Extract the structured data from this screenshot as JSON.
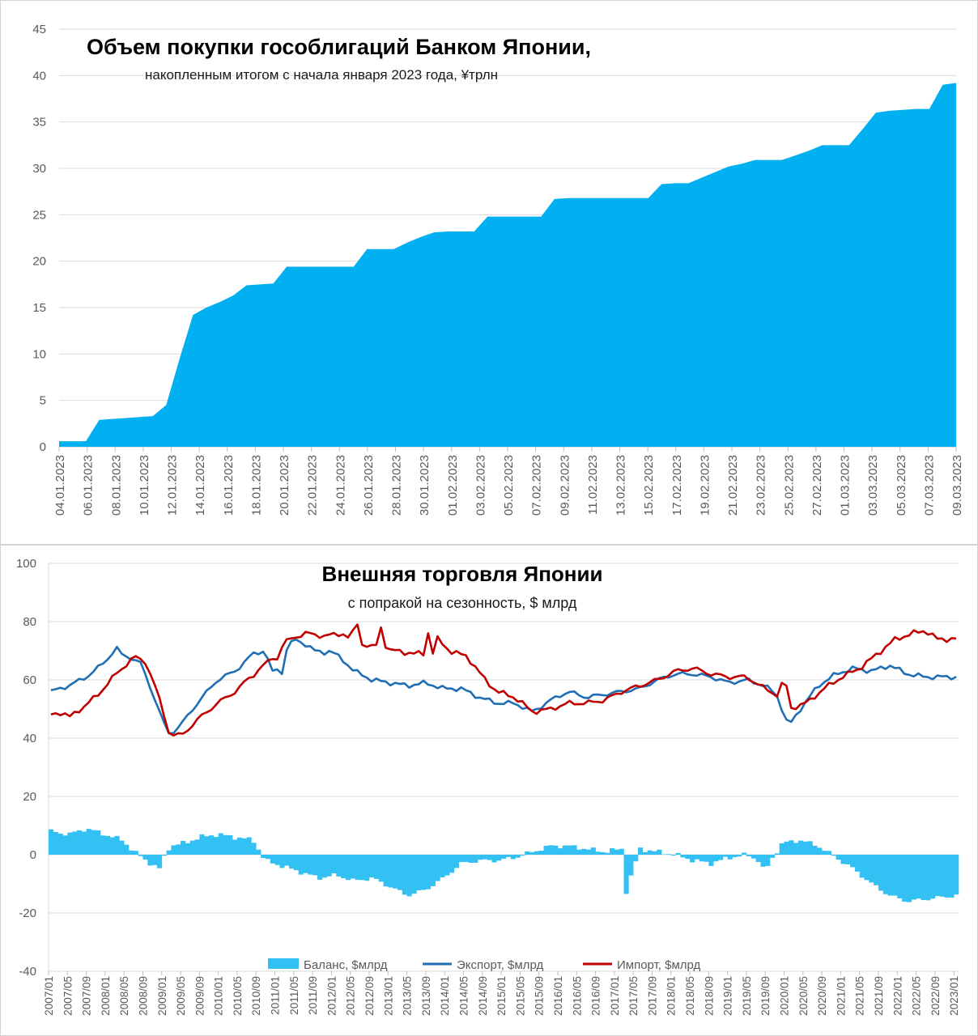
{
  "colors": {
    "area": "#00b0f0",
    "bar": "#33c0f3",
    "export": "#1f6fb5",
    "import": "#c00000",
    "grid": "#d9d9d9",
    "axis": "#bfbfbf",
    "text": "#595959"
  },
  "chart_data": [
    {
      "type": "area",
      "title": "Объем покупки гособлигаций Банком Японии,",
      "subtitle": "накопленным итогом с начала января 2023 года, ¥трлн",
      "xlabel": "",
      "ylabel": "",
      "ylim": [
        0,
        45
      ],
      "yticks": [
        0,
        5,
        10,
        15,
        20,
        25,
        30,
        35,
        40,
        45
      ],
      "grid": true,
      "x_labels": [
        "04.01.2023",
        "06.01.2023",
        "08.01.2023",
        "10.01.2023",
        "12.01.2023",
        "14.01.2023",
        "16.01.2023",
        "18.01.2023",
        "20.01.2023",
        "22.01.2023",
        "24.01.2023",
        "26.01.2023",
        "28.01.2023",
        "30.01.2023",
        "01.02.2023",
        "03.02.2023",
        "05.02.2023",
        "07.02.2023",
        "09.02.2023",
        "11.02.2023",
        "13.02.2023",
        "15.02.2023",
        "17.02.2023",
        "19.02.2023",
        "21.02.2023",
        "23.02.2023",
        "25.02.2023",
        "27.02.2023",
        "01.03.2023",
        "03.03.2023",
        "05.03.2023",
        "07.03.2023",
        "09.03.2023"
      ],
      "series": [
        {
          "name": "Объем покупки гособлигаций",
          "values": [
            0.6,
            0.6,
            0.6,
            2.9,
            3.0,
            3.1,
            3.2,
            3.3,
            4.5,
            9.5,
            14.2,
            15.0,
            15.6,
            16.3,
            17.4,
            17.5,
            17.6,
            19.4,
            19.4,
            19.4,
            19.4,
            19.4,
            19.4,
            21.3,
            21.3,
            21.3,
            22.0,
            22.6,
            23.1,
            23.2,
            23.2,
            23.2,
            24.8,
            24.8,
            24.8,
            24.8,
            24.8,
            26.7,
            26.8,
            26.8,
            26.8,
            26.8,
            26.8,
            26.8,
            26.8,
            28.3,
            28.4,
            28.4,
            29.0,
            29.6,
            30.2,
            30.5,
            30.9,
            30.9,
            30.9,
            31.4,
            31.9,
            32.5,
            32.5,
            32.5,
            34.2,
            36.0,
            36.2,
            36.3,
            36.4,
            36.4,
            39.0,
            39.2
          ]
        }
      ]
    },
    {
      "type": "line+bar",
      "title": "Внешняя торговля Японии",
      "subtitle": "с попракой на сезонность, $ млрд",
      "xlabel": "",
      "ylabel": "",
      "ylim": [
        -40,
        100
      ],
      "yticks": [
        -40,
        -20,
        0,
        20,
        40,
        60,
        80,
        100
      ],
      "grid": true,
      "legend_position": "bottom",
      "start_month": "2007/01",
      "x_labels": [
        "2007/01",
        "2007/05",
        "2007/09",
        "2008/01",
        "2008/05",
        "2008/09",
        "2009/01",
        "2009/05",
        "2009/09",
        "2010/01",
        "2010/05",
        "2010/09",
        "2011/01",
        "2011/05",
        "2011/09",
        "2012/01",
        "2012/05",
        "2012/09",
        "2013/01",
        "2013/05",
        "2013/09",
        "2014/01",
        "2014/05",
        "2014/09",
        "2015/01",
        "2015/05",
        "2015/09",
        "2016/01",
        "2016/05",
        "2016/09",
        "2017/01",
        "2017/05",
        "2017/09",
        "2018/01",
        "2018/05",
        "2018/09",
        "2019/01",
        "2019/05",
        "2019/09",
        "2020/01",
        "2020/05",
        "2020/09",
        "2021/01",
        "2021/05",
        "2021/09",
        "2022/01",
        "2022/05",
        "2022/09",
        "2023/01"
      ],
      "series": [
        {
          "name": "Баланс, $млрд",
          "kind": "bar",
          "anchors": [
            [
              0,
              8
            ],
            [
              6,
              7
            ],
            [
              12,
              9
            ],
            [
              18,
              7
            ],
            [
              24,
              5
            ],
            [
              28,
              1
            ],
            [
              32,
              -2
            ],
            [
              35,
              -4
            ],
            [
              36,
              -6
            ],
            [
              38,
              -1
            ],
            [
              40,
              3
            ],
            [
              45,
              4
            ],
            [
              50,
              6
            ],
            [
              56,
              7
            ],
            [
              62,
              6
            ],
            [
              68,
              5
            ],
            [
              72,
              -2
            ],
            [
              78,
              -4
            ],
            [
              84,
              -6
            ],
            [
              90,
              -8
            ],
            [
              96,
              -7
            ],
            [
              102,
              -9
            ],
            [
              108,
              -8
            ],
            [
              114,
              -11
            ],
            [
              120,
              -14
            ],
            [
              126,
              -12
            ],
            [
              132,
              -8
            ],
            [
              138,
              -3
            ],
            [
              144,
              -2
            ],
            [
              150,
              -2
            ],
            [
              156,
              -1
            ],
            [
              162,
              1
            ],
            [
              168,
              3
            ],
            [
              174,
              3
            ],
            [
              180,
              2
            ],
            [
              186,
              1
            ],
            [
              192,
              2
            ],
            [
              198,
              2
            ],
            [
              204,
              1
            ],
            [
              210,
              0
            ],
            [
              216,
              -2
            ],
            [
              222,
              -3
            ],
            [
              228,
              -1
            ],
            [
              234,
              0
            ],
            [
              238,
              -2
            ],
            [
              240,
              -6
            ],
            [
              242,
              -2
            ],
            [
              246,
              4
            ],
            [
              252,
              5
            ],
            [
              258,
              3
            ],
            [
              264,
              -1
            ],
            [
              270,
              -5
            ],
            [
              276,
              -10
            ],
            [
              282,
              -14
            ],
            [
              288,
              -16
            ],
            [
              193,
              -14
            ]
          ]
        },
        {
          "name": "Экспорт, $млрд",
          "kind": "line",
          "anchors": [
            [
              0,
              56
            ],
            [
              6,
              58
            ],
            [
              12,
              61
            ],
            [
              18,
              66
            ],
            [
              22,
              71
            ],
            [
              26,
              68
            ],
            [
              30,
              66
            ],
            [
              34,
              56
            ],
            [
              38,
              45
            ],
            [
              40,
              41
            ],
            [
              44,
              45
            ],
            [
              50,
              53
            ],
            [
              56,
              60
            ],
            [
              62,
              63
            ],
            [
              68,
              69
            ],
            [
              72,
              70
            ],
            [
              75,
              61
            ],
            [
              78,
              69
            ],
            [
              82,
              74
            ],
            [
              86,
              72
            ],
            [
              90,
              69
            ],
            [
              94,
              70
            ],
            [
              98,
              67
            ],
            [
              102,
              63
            ],
            [
              108,
              60
            ],
            [
              114,
              59
            ],
            [
              120,
              58
            ],
            [
              126,
              59
            ],
            [
              132,
              57
            ],
            [
              138,
              57
            ],
            [
              144,
              54
            ],
            [
              150,
              52
            ],
            [
              156,
              52
            ],
            [
              162,
              49
            ],
            [
              168,
              53
            ],
            [
              174,
              56
            ],
            [
              180,
              54
            ],
            [
              186,
              55
            ],
            [
              192,
              56
            ],
            [
              198,
              57
            ],
            [
              204,
              60
            ],
            [
              210,
              62
            ],
            [
              216,
              62
            ],
            [
              222,
              61
            ],
            [
              228,
              59
            ],
            [
              234,
              60
            ],
            [
              240,
              58
            ],
            [
              244,
              55
            ],
            [
              248,
              44
            ],
            [
              252,
              50
            ],
            [
              258,
              58
            ],
            [
              264,
              62
            ],
            [
              270,
              64
            ],
            [
              276,
              63
            ],
            [
              282,
              65
            ],
            [
              288,
              62
            ],
            [
              294,
              61
            ],
            [
              300,
              61
            ],
            [
              304,
              61
            ],
            [
              306,
              60
            ]
          ]
        },
        {
          "name": "Импорт, $млрд",
          "kind": "line",
          "anchors": [
            [
              0,
              48
            ],
            [
              4,
              49
            ],
            [
              6,
              47
            ],
            [
              10,
              50
            ],
            [
              16,
              55
            ],
            [
              20,
              60
            ],
            [
              24,
              64
            ],
            [
              28,
              68
            ],
            [
              32,
              66
            ],
            [
              36,
              55
            ],
            [
              40,
              41
            ],
            [
              44,
              41
            ],
            [
              50,
              47
            ],
            [
              56,
              52
            ],
            [
              62,
              56
            ],
            [
              68,
              62
            ],
            [
              74,
              67
            ],
            [
              80,
              74
            ],
            [
              86,
              76
            ],
            [
              92,
              75
            ],
            [
              98,
              76
            ],
            [
              102,
              73
            ],
            [
              106,
              72
            ],
            [
              110,
              70
            ],
            [
              116,
              70
            ],
            [
              122,
              69
            ],
            [
              126,
              69
            ],
            [
              130,
              74
            ],
            [
              134,
              70
            ],
            [
              140,
              68
            ],
            [
              146,
              60
            ],
            [
              150,
              56
            ],
            [
              156,
              54
            ],
            [
              162,
              49
            ],
            [
              168,
              50
            ],
            [
              174,
              52
            ],
            [
              180,
              52
            ],
            [
              186,
              53
            ],
            [
              192,
              56
            ],
            [
              198,
              58
            ],
            [
              204,
              60
            ],
            [
              210,
              63
            ],
            [
              216,
              64
            ],
            [
              222,
              62
            ],
            [
              228,
              61
            ],
            [
              234,
              61
            ],
            [
              240,
              57
            ],
            [
              244,
              55
            ],
            [
              248,
              50
            ],
            [
              254,
              52
            ],
            [
              260,
              57
            ],
            [
              266,
              61
            ],
            [
              272,
              64
            ],
            [
              278,
              69
            ],
            [
              284,
              74
            ],
            [
              290,
              76
            ],
            [
              294,
              77
            ],
            [
              298,
              74
            ],
            [
              302,
              74
            ],
            [
              306,
              74
            ]
          ]
        }
      ],
      "markers": {
        "Экспорт, $млрд": [
          [
            24,
            69
          ],
          [
            25,
            71
          ],
          [
            26,
            68
          ],
          [
            78,
            62
          ],
          [
            90,
            70
          ]
        ],
        "Импорт, $млрд": [
          [
            68,
            61
          ],
          [
            76,
            67
          ],
          [
            102,
            77
          ],
          [
            103,
            79
          ],
          [
            104,
            72
          ],
          [
            110,
            72
          ],
          [
            111,
            78
          ],
          [
            112,
            71
          ],
          [
            127,
            76
          ],
          [
            128,
            69
          ],
          [
            246,
            59
          ],
          [
            247,
            58
          ]
        ]
      }
    }
  ],
  "legend": [
    {
      "label": "Баланс, $млрд",
      "color_key": "bar"
    },
    {
      "label": "Экспорт, $млрд",
      "color_key": "export"
    },
    {
      "label": "Импорт, $млрд",
      "color_key": "import"
    }
  ]
}
